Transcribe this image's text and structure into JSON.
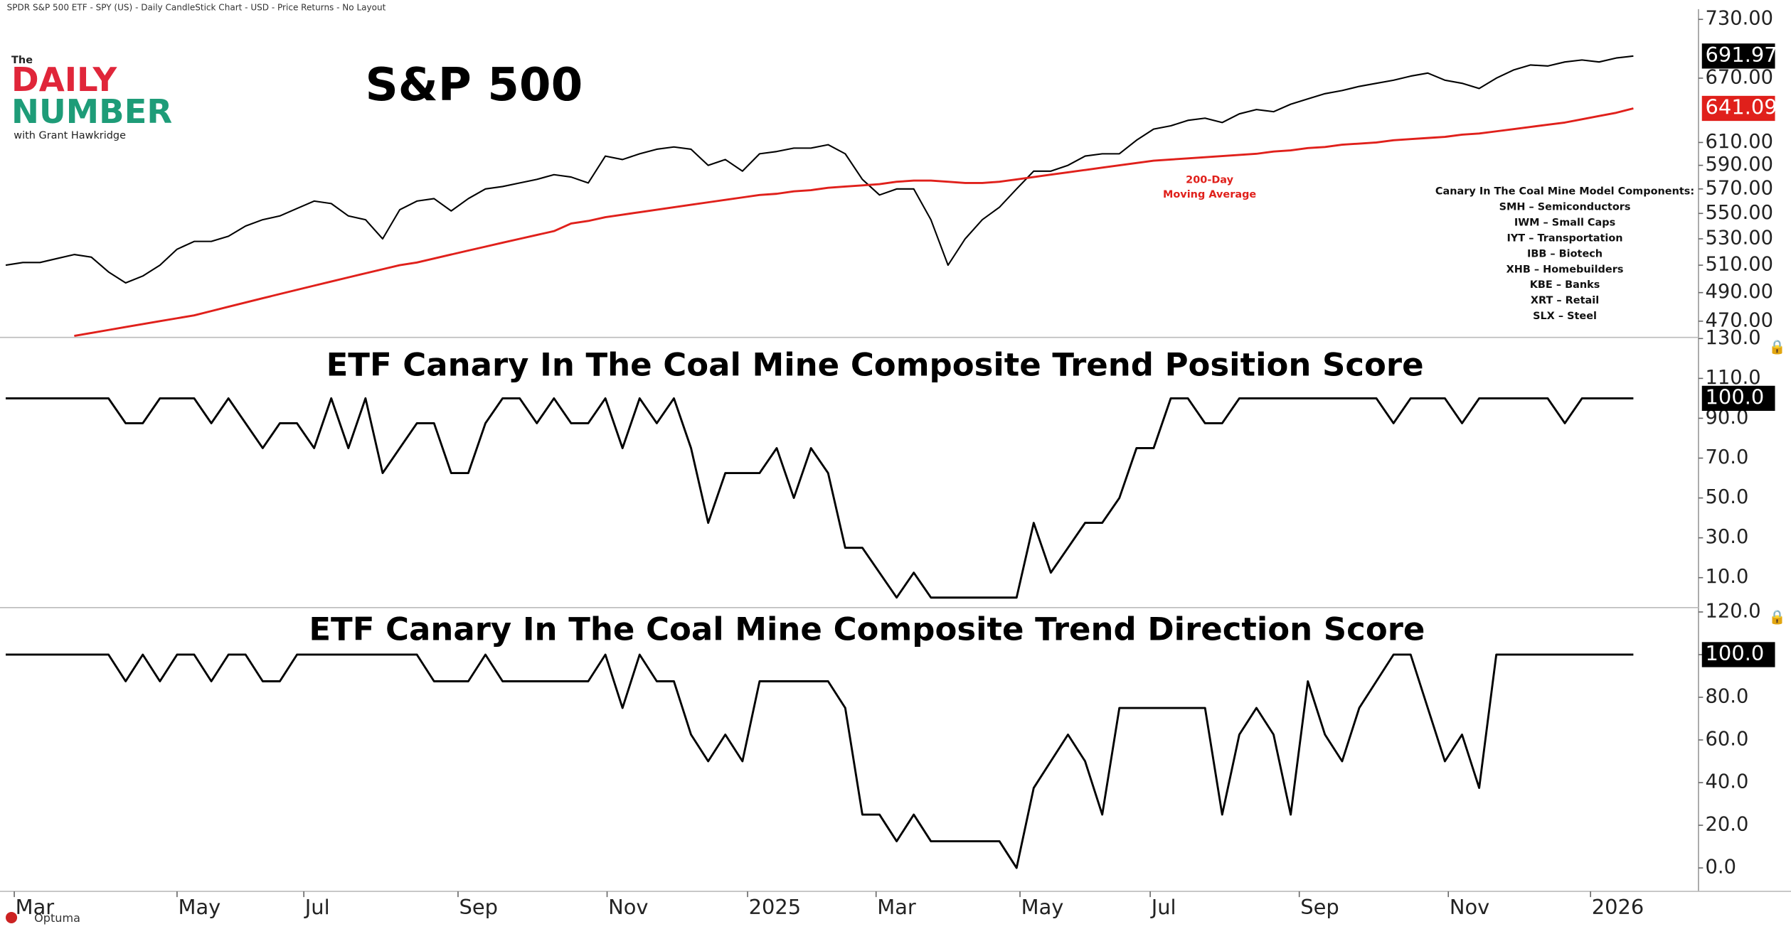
{
  "header": "SPDR S&P 500 ETF - SPY (US) - Daily CandleStick Chart - USD - Price Returns - No Layout",
  "logo": {
    "top": "The",
    "line1": "DAILY",
    "line2": "NUMBER",
    "byline": "with Grant Hawkridge"
  },
  "footer": "Optuma",
  "chart_data": [
    {
      "type": "line",
      "title": "S&P 500",
      "log_scale": true,
      "ylim": [
        459,
        741
      ],
      "yticks": [
        {
          "value": 470,
          "label": "470.00"
        },
        {
          "value": 490,
          "label": "490.00"
        },
        {
          "value": 510,
          "label": "510.00"
        },
        {
          "value": 530,
          "label": "530.00"
        },
        {
          "value": 550,
          "label": "550.00"
        },
        {
          "value": 570,
          "label": "570.00"
        },
        {
          "value": 590,
          "label": "590.00"
        },
        {
          "value": 610,
          "label": "610.00"
        },
        {
          "value": 670,
          "label": "670.00"
        },
        {
          "value": 730,
          "label": "730.00"
        }
      ],
      "annotation": [
        "200-Day",
        "Moving Average"
      ],
      "components": [
        "Canary In The Coal Mine Model Components:",
        "SMH – Semiconductors",
        "IWM – Small Caps",
        "IYT – Transportation",
        "IBB – Biotech",
        "XHB – Homebuilders",
        "KBE – Banks",
        "XRT – Retail",
        "SLX – Steel"
      ],
      "series": [
        {
          "color": "#000000",
          "last_label": "691.97",
          "values": [
            510,
            512,
            512,
            515,
            518,
            516,
            505,
            497,
            502,
            510,
            522,
            528,
            528,
            532,
            540,
            545,
            548,
            554,
            560,
            558,
            548,
            545,
            530,
            553,
            560,
            562,
            552,
            562,
            570,
            572,
            575,
            578,
            582,
            580,
            575,
            598,
            595,
            600,
            604,
            606,
            604,
            590,
            595,
            585,
            600,
            602,
            605,
            605,
            608,
            600,
            578,
            565,
            570,
            570,
            545,
            510,
            530,
            545,
            555,
            570,
            585,
            585,
            590,
            598,
            600,
            600,
            612,
            622,
            625,
            630,
            632,
            628,
            636,
            640,
            638,
            645,
            650,
            655,
            658,
            662,
            665,
            668,
            672,
            675,
            668,
            665,
            660,
            670,
            678,
            683,
            682,
            686,
            688,
            686,
            690,
            691.97
          ]
        },
        {
          "color": "#e0201b",
          "last_label": "641.09",
          "values": [
            null,
            null,
            null,
            null,
            460,
            462,
            464,
            466,
            468,
            470,
            472,
            474,
            477,
            480,
            483,
            486,
            489,
            492,
            495,
            498,
            501,
            504,
            507,
            510,
            512,
            515,
            518,
            521,
            524,
            527,
            530,
            533,
            536,
            542,
            544,
            547,
            549,
            551,
            553,
            555,
            557,
            559,
            561,
            563,
            565,
            566,
            568,
            569,
            571,
            572,
            573,
            574,
            576,
            577,
            577,
            576,
            575,
            575,
            576,
            578,
            580,
            582,
            584,
            586,
            588,
            590,
            592,
            594,
            595,
            596,
            597,
            598,
            599,
            600,
            602,
            603,
            605,
            606,
            608,
            609,
            610,
            612,
            613,
            614,
            615,
            617,
            618,
            620,
            622,
            624,
            626,
            628,
            631,
            634,
            637,
            641.09
          ]
        }
      ]
    },
    {
      "type": "line",
      "title": "ETF Canary In The Coal Mine Composite Trend Position Score",
      "ylim": [
        -5,
        130
      ],
      "yticks": [
        {
          "value": 10,
          "label": "10.0"
        },
        {
          "value": 30,
          "label": "30.0"
        },
        {
          "value": 50,
          "label": "50.0"
        },
        {
          "value": 70,
          "label": "70.0"
        },
        {
          "value": 90,
          "label": "90.0"
        },
        {
          "value": 110,
          "label": "110.0"
        },
        {
          "value": 130,
          "label": "130.0"
        }
      ],
      "series": [
        {
          "color": "#000000",
          "last_label": "100.0",
          "values": [
            100,
            100,
            100,
            100,
            100,
            100,
            100,
            87.5,
            87.5,
            100,
            100,
            100,
            87.5,
            100,
            87.5,
            75,
            87.5,
            87.5,
            75,
            100,
            75,
            100,
            62.5,
            75,
            87.5,
            87.5,
            62.5,
            62.5,
            87.5,
            100,
            100,
            87.5,
            100,
            87.5,
            87.5,
            100,
            75,
            100,
            87.5,
            100,
            75,
            37.5,
            62.5,
            62.5,
            62.5,
            75,
            50,
            75,
            62.5,
            25,
            25,
            12.5,
            0,
            12.5,
            0,
            0,
            0,
            0,
            0,
            0,
            37.5,
            12.5,
            25,
            37.5,
            37.5,
            50,
            75,
            75,
            100,
            100,
            87.5,
            87.5,
            100,
            100,
            100,
            100,
            100,
            100,
            100,
            100,
            100,
            87.5,
            100,
            100,
            100,
            87.5,
            100,
            100,
            100,
            100,
            100,
            87.5,
            100,
            100,
            100,
            100
          ]
        }
      ]
    },
    {
      "type": "line",
      "title": "ETF Canary In The Coal Mine Composite Trend Direction Score",
      "ylim": [
        -11,
        121
      ],
      "yticks": [
        {
          "value": 0,
          "label": "0.0"
        },
        {
          "value": 20,
          "label": "20.0"
        },
        {
          "value": 40,
          "label": "40.0"
        },
        {
          "value": 60,
          "label": "60.0"
        },
        {
          "value": 80,
          "label": "80.0"
        },
        {
          "value": 100,
          "label": "100.0"
        },
        {
          "value": 120,
          "label": "120.0"
        }
      ],
      "xticks": [
        {
          "value": 0.5,
          "label": "Mar"
        },
        {
          "value": 10,
          "label": "May"
        },
        {
          "value": 17.4,
          "label": "Jul"
        },
        {
          "value": 26.4,
          "label": "Sep"
        },
        {
          "value": 35.1,
          "label": "Nov"
        },
        {
          "value": 43.3,
          "label": "2025"
        },
        {
          "value": 50.8,
          "label": "Mar"
        },
        {
          "value": 59.2,
          "label": "May"
        },
        {
          "value": 66.8,
          "label": "Jul"
        },
        {
          "value": 75.5,
          "label": "Sep"
        },
        {
          "value": 84.2,
          "label": "Nov"
        },
        {
          "value": 92.5,
          "label": "2026"
        }
      ],
      "series": [
        {
          "color": "#000000",
          "last_label": "100.0",
          "values": [
            100,
            100,
            100,
            100,
            100,
            100,
            100,
            87.5,
            100,
            87.5,
            100,
            100,
            87.5,
            100,
            100,
            87.5,
            87.5,
            100,
            100,
            100,
            100,
            100,
            100,
            100,
            100,
            87.5,
            87.5,
            87.5,
            100,
            87.5,
            87.5,
            87.5,
            87.5,
            87.5,
            87.5,
            100,
            75,
            100,
            87.5,
            87.5,
            62.5,
            50,
            62.5,
            50,
            87.5,
            87.5,
            87.5,
            87.5,
            87.5,
            75,
            25,
            25,
            12.5,
            25,
            12.5,
            12.5,
            12.5,
            12.5,
            12.5,
            0,
            37.5,
            50,
            62.5,
            50,
            25,
            75,
            75,
            75,
            75,
            75,
            75,
            25,
            62.5,
            75,
            62.5,
            25,
            87.5,
            62.5,
            50,
            75,
            87.5,
            100,
            100,
            75,
            50,
            62.5,
            37.5,
            100,
            100,
            100,
            100,
            100,
            100,
            100,
            100,
            100
          ]
        }
      ]
    }
  ]
}
